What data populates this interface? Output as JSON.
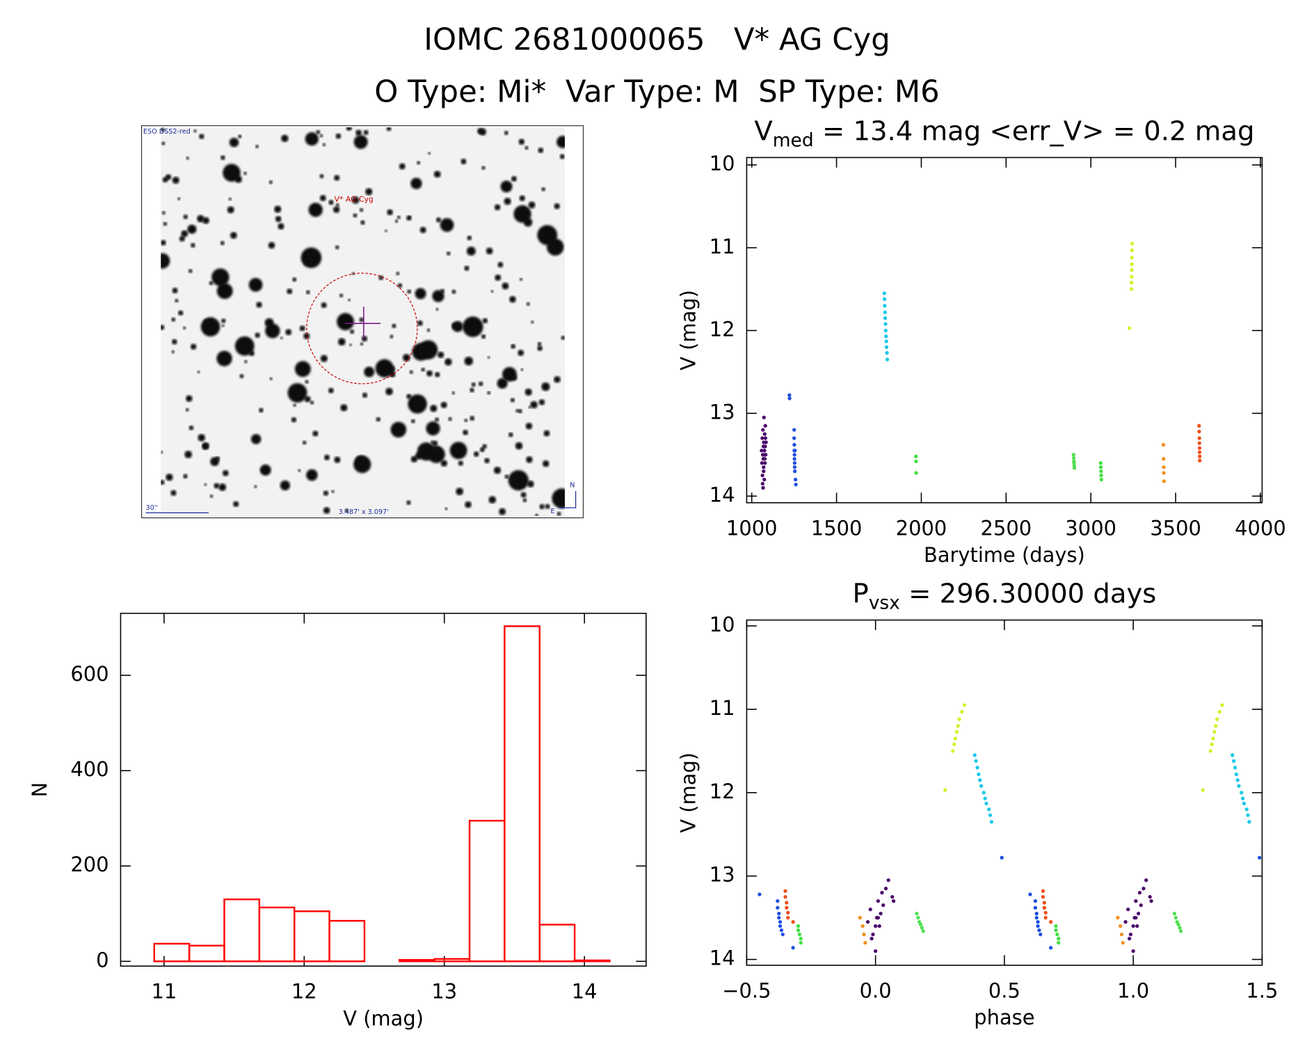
{
  "title": "IOMC 2681000065   V* AG Cyg",
  "subtitle": "O Type: Mi*  Var Type: M  SP Type: M6",
  "image": {
    "survey": "ESO DSS2-red",
    "target": "V* AG Cyg",
    "scale": "30''",
    "size": "3.487' x 3.097'",
    "north": "N",
    "east": "E"
  },
  "chart_data": [
    {
      "type": "scatter",
      "title": {
        "text": "V",
        "sub": "med",
        "rest": " = 13.4 mag <err_V> = 0.2 mag"
      },
      "xlabel": "Barytime (days)",
      "ylabel": "V (mag)",
      "xlim": [
        970,
        4010
      ],
      "ylim": [
        14.08,
        9.91
      ],
      "xticks": [
        1000,
        1500,
        2000,
        2500,
        3000,
        3500,
        4000
      ],
      "yticks": [
        10,
        11,
        12,
        13,
        14
      ],
      "series": [
        {
          "color": "#4b0a6b",
          "x": [
            1058,
            1060,
            1062,
            1063,
            1065,
            1066,
            1067,
            1068,
            1069,
            1070,
            1071,
            1072,
            1073,
            1074,
            1075,
            1076,
            1078,
            1079,
            1080,
            1082,
            1084,
            1064,
            1070,
            1077,
            1081
          ],
          "values": [
            13.45,
            13.6,
            13.3,
            13.75,
            13.5,
            13.2,
            13.9,
            13.55,
            13.4,
            13.65,
            13.35,
            13.05,
            13.5,
            13.8,
            13.45,
            13.25,
            13.6,
            13.4,
            13.15,
            13.5,
            13.35,
            13.85,
            13.7,
            13.55,
            13.3
          ]
        },
        {
          "color": "#1f4fe0",
          "x": [
            1222,
            1223,
            1250,
            1250,
            1251,
            1251,
            1252,
            1252,
            1253,
            1253,
            1254,
            1255,
            1258,
            1260
          ],
          "values": [
            12.78,
            12.82,
            13.2,
            13.3,
            13.38,
            13.45,
            13.5,
            13.55,
            13.6,
            13.65,
            13.7,
            13.45,
            13.8,
            13.86
          ]
        },
        {
          "color": "#19c8e6",
          "x": [
            1782,
            1783,
            1784,
            1786,
            1787,
            1789,
            1790,
            1792,
            1794,
            1795,
            1797,
            1799
          ],
          "values": [
            11.55,
            11.62,
            11.7,
            11.78,
            11.85,
            11.92,
            12.0,
            12.07,
            12.13,
            12.2,
            12.27,
            12.35
          ]
        },
        {
          "color": "#3fe03f",
          "x": [
            1968,
            1969,
            1970
          ],
          "values": [
            13.52,
            13.58,
            13.72
          ]
        },
        {
          "color": "#4ee04e",
          "x": [
            2898,
            2899,
            2900,
            2901,
            2902,
            2903
          ],
          "values": [
            13.5,
            13.54,
            13.58,
            13.6,
            13.63,
            13.66
          ]
        },
        {
          "color": "#3fe03f",
          "x": [
            3058,
            3059,
            3060,
            3061,
            3062
          ],
          "values": [
            13.6,
            13.65,
            13.7,
            13.75,
            13.8
          ]
        },
        {
          "color": "#d6f02a",
          "x": [
            3228,
            3240,
            3240,
            3241,
            3241,
            3242,
            3242,
            3243,
            3244
          ],
          "values": [
            11.97,
            11.5,
            11.42,
            11.35,
            11.27,
            11.2,
            11.12,
            11.03,
            10.95
          ]
        },
        {
          "color": "#f09020",
          "x": [
            3428,
            3429,
            3430,
            3430,
            3431
          ],
          "values": [
            13.38,
            13.55,
            13.65,
            13.72,
            13.82
          ]
        },
        {
          "color": "#f0501a",
          "x": [
            3638,
            3639,
            3640,
            3640,
            3641,
            3641,
            3642,
            3642
          ],
          "values": [
            13.15,
            13.22,
            13.3,
            13.36,
            13.42,
            13.47,
            13.52,
            13.57
          ]
        }
      ]
    },
    {
      "type": "scatter",
      "title": {
        "text": "P",
        "sub": "vsx",
        "rest": " = 296.30000 days"
      },
      "xlabel": "phase",
      "ylabel": "V (mag)",
      "xlim": [
        -0.5,
        1.5
      ],
      "ylim": [
        14.07,
        9.93
      ],
      "xticks": [
        {
          "value": -0.5,
          "label": "−0.5"
        },
        {
          "value": 0,
          "label": "0.0"
        },
        0.5,
        {
          "value": 1,
          "label": "1.0"
        },
        1.5
      ],
      "yticks": [
        10,
        11,
        12,
        13,
        14
      ],
      "series": [
        {
          "color": "#4b0a6b",
          "x": [
            -0.03,
            -0.02,
            -0.01,
            0,
            0.005,
            0.01,
            0.015,
            0.02,
            0.025,
            0.03,
            0.04,
            0.05,
            0.07,
            0.065,
            -0.015,
            0.0,
            0.01,
            0.97,
            0.98,
            0.99,
            1.0,
            1.005,
            1.01,
            1.015,
            1.02,
            1.025,
            1.03,
            1.04,
            1.05,
            1.07,
            1.065,
            0.985,
            1.0,
            1.01
          ],
          "values": [
            13.55,
            13.4,
            13.7,
            13.9,
            13.5,
            13.3,
            13.6,
            13.45,
            13.2,
            13.35,
            13.15,
            13.05,
            13.3,
            13.25,
            13.75,
            13.6,
            13.5,
            13.55,
            13.4,
            13.7,
            13.9,
            13.5,
            13.3,
            13.6,
            13.45,
            13.2,
            13.35,
            13.15,
            13.05,
            13.3,
            13.25,
            13.75,
            13.6,
            13.5
          ]
        },
        {
          "color": "#1f4fe0",
          "x": [
            -0.45,
            -0.38,
            -0.38,
            -0.375,
            -0.375,
            -0.37,
            -0.37,
            -0.365,
            -0.36,
            -0.32,
            0.49,
            0.6,
            0.62,
            0.62,
            0.625,
            0.625,
            0.63,
            0.63,
            0.635,
            0.64,
            0.68,
            1.49
          ],
          "values": [
            13.22,
            13.3,
            13.38,
            13.45,
            13.5,
            13.55,
            13.6,
            13.65,
            13.7,
            13.86,
            12.78,
            13.22,
            13.3,
            13.38,
            13.45,
            13.5,
            13.55,
            13.6,
            13.65,
            13.7,
            13.86,
            12.78
          ]
        },
        {
          "color": "#f0501a",
          "x": [
            -0.35,
            -0.35,
            -0.345,
            -0.345,
            -0.34,
            -0.34,
            -0.32,
            0.65,
            0.65,
            0.655,
            0.655,
            0.66,
            0.66,
            0.68
          ],
          "values": [
            13.18,
            13.25,
            13.32,
            13.38,
            13.44,
            13.5,
            13.55,
            13.18,
            13.25,
            13.32,
            13.38,
            13.44,
            13.5,
            13.55
          ]
        },
        {
          "color": "#3fe03f",
          "x": [
            -0.3,
            -0.3,
            -0.295,
            -0.29,
            -0.29,
            0.7,
            0.7,
            0.705,
            0.71,
            0.71
          ],
          "values": [
            13.6,
            13.65,
            13.7,
            13.75,
            13.8,
            13.6,
            13.65,
            13.7,
            13.75,
            13.8
          ]
        },
        {
          "color": "#4ee04e",
          "x": [
            0.16,
            0.165,
            0.17,
            0.175,
            0.18,
            0.185,
            1.16,
            1.165,
            1.17,
            1.175,
            1.18,
            1.185
          ],
          "values": [
            13.45,
            13.5,
            13.55,
            13.58,
            13.62,
            13.66,
            13.45,
            13.5,
            13.55,
            13.58,
            13.62,
            13.66
          ]
        },
        {
          "color": "#f09020",
          "x": [
            -0.06,
            -0.05,
            -0.045,
            -0.04,
            0.94,
            0.95,
            0.955,
            0.96
          ],
          "values": [
            13.5,
            13.6,
            13.7,
            13.8,
            13.5,
            13.6,
            13.7,
            13.8
          ]
        },
        {
          "color": "#d6f02a",
          "x": [
            0.27,
            0.3,
            0.305,
            0.31,
            0.315,
            0.32,
            0.325,
            0.335,
            0.345,
            1.27,
            1.3,
            1.305,
            1.31,
            1.315,
            1.32,
            1.325,
            1.335,
            1.345
          ],
          "values": [
            11.97,
            11.5,
            11.42,
            11.35,
            11.27,
            11.2,
            11.12,
            11.03,
            10.95,
            11.97,
            11.5,
            11.42,
            11.35,
            11.27,
            11.2,
            11.12,
            11.03,
            10.95
          ]
        },
        {
          "color": "#19c8e6",
          "x": [
            0.385,
            0.39,
            0.395,
            0.4,
            0.405,
            0.41,
            0.42,
            0.425,
            0.43,
            0.44,
            0.445,
            0.45,
            1.385,
            1.39,
            1.395,
            1.4,
            1.405,
            1.41,
            1.42,
            1.425,
            1.43,
            1.44,
            1.445,
            1.45
          ],
          "values": [
            11.55,
            11.62,
            11.7,
            11.78,
            11.85,
            11.92,
            12.0,
            12.07,
            12.13,
            12.2,
            12.27,
            12.35,
            11.55,
            11.62,
            11.7,
            11.78,
            11.85,
            11.92,
            12.0,
            12.07,
            12.13,
            12.2,
            12.27,
            12.35
          ]
        }
      ]
    },
    {
      "type": "histogram",
      "xlabel": "V (mag)",
      "ylabel": "N",
      "color": "#ff0000",
      "xlim": [
        10.69,
        14.44
      ],
      "ylim": [
        -10,
        730
      ],
      "xticks": [
        11,
        12,
        13,
        14
      ],
      "yticks": [
        0,
        200,
        400,
        600
      ],
      "bins": [
        10.93,
        11.18,
        11.43,
        11.68,
        11.93,
        12.18,
        12.43,
        12.68,
        12.93,
        13.18,
        13.43,
        13.68,
        13.93,
        14.18
      ],
      "values": [
        37,
        33,
        130,
        113,
        105,
        85,
        0,
        3,
        5,
        295,
        703,
        77,
        2
      ]
    }
  ]
}
